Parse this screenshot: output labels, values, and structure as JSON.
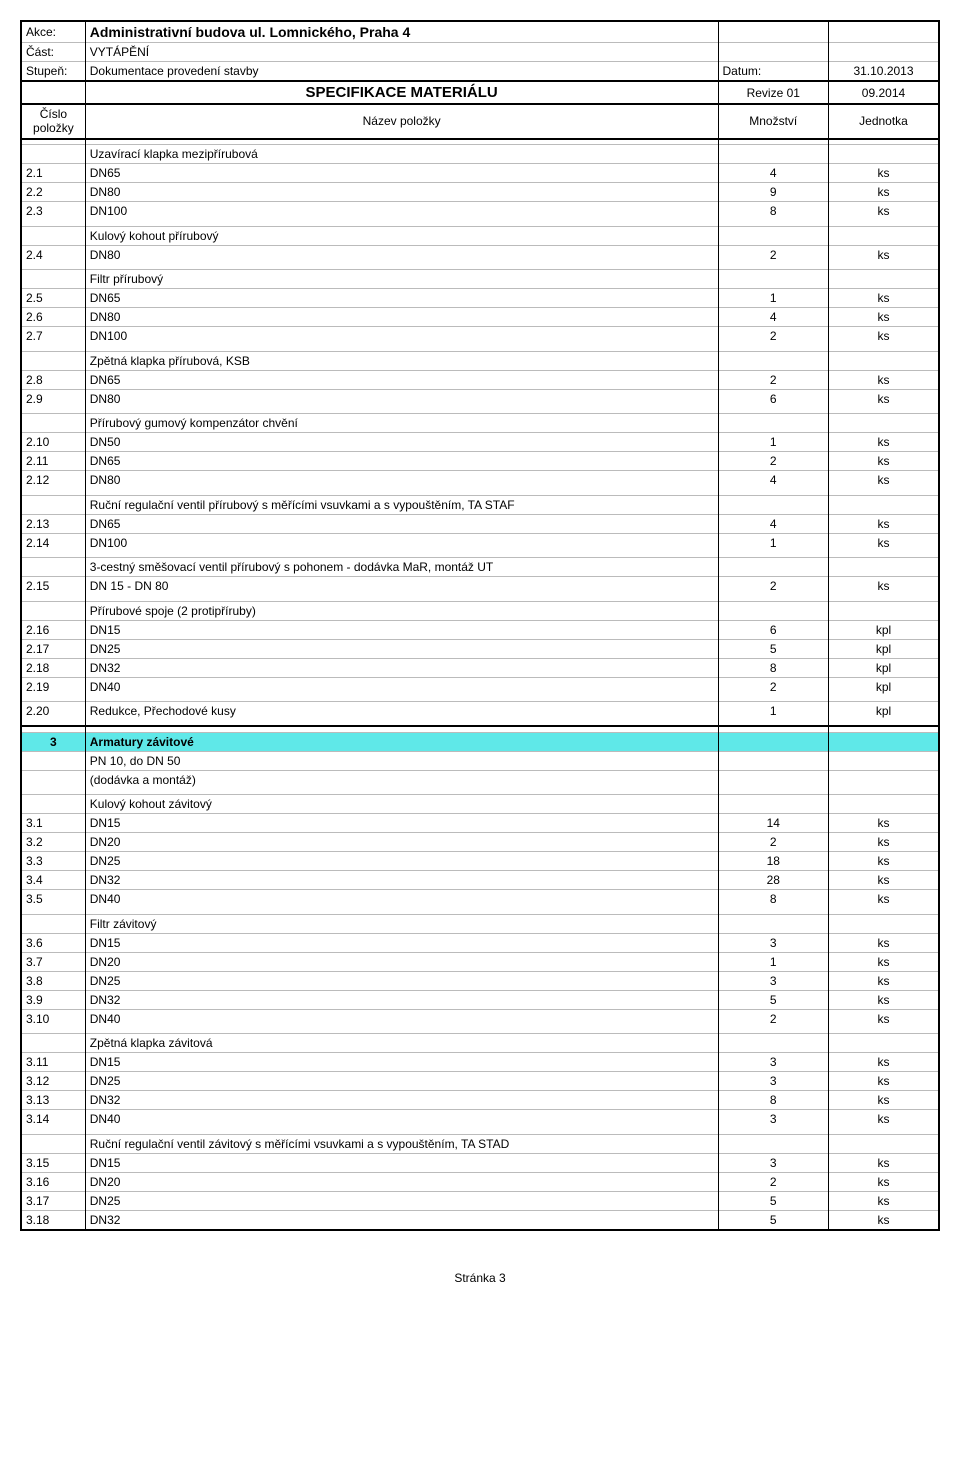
{
  "header": {
    "akce_label": "Akce:",
    "akce_value": "Administrativní budova ul. Lomnického, Praha 4",
    "cast_label": "Část:",
    "cast_value": "VYTÁPĚNÍ",
    "stupen_label": "Stupeň:",
    "stupen_value": "Dokumentace provedení stavby",
    "datum_label": "Datum:",
    "datum_value": "31.10.2013",
    "title": "SPECIFIKACE MATERIÁLU",
    "revize": "Revize 01",
    "revize_date": "09.2014",
    "col_id": "Číslo položky",
    "col_name": "Název položky",
    "col_qty": "Množství",
    "col_unit": "Jednotka"
  },
  "groups": [
    {
      "heading": "Uzavírací klapka mezipřírubová",
      "rows": [
        {
          "id": "2.1",
          "name": "DN65",
          "qty": "4",
          "unit": "ks"
        },
        {
          "id": "2.2",
          "name": "DN80",
          "qty": "9",
          "unit": "ks"
        },
        {
          "id": "2.3",
          "name": "DN100",
          "qty": "8",
          "unit": "ks"
        }
      ]
    },
    {
      "heading": "Kulový kohout přírubový",
      "rows": [
        {
          "id": "2.4",
          "name": "DN80",
          "qty": "2",
          "unit": "ks"
        }
      ]
    },
    {
      "heading": "Filtr přírubový",
      "rows": [
        {
          "id": "2.5",
          "name": "DN65",
          "qty": "1",
          "unit": "ks"
        },
        {
          "id": "2.6",
          "name": "DN80",
          "qty": "4",
          "unit": "ks"
        },
        {
          "id": "2.7",
          "name": "DN100",
          "qty": "2",
          "unit": "ks"
        }
      ]
    },
    {
      "heading": "Zpětná klapka přírubová, KSB",
      "rows": [
        {
          "id": "2.8",
          "name": "DN65",
          "qty": "2",
          "unit": "ks"
        },
        {
          "id": "2.9",
          "name": "DN80",
          "qty": "6",
          "unit": "ks"
        }
      ]
    },
    {
      "heading": "Přírubový gumový kompenzátor chvění",
      "rows": [
        {
          "id": "2.10",
          "name": "DN50",
          "qty": "1",
          "unit": "ks"
        },
        {
          "id": "2.11",
          "name": "DN65",
          "qty": "2",
          "unit": "ks"
        },
        {
          "id": "2.12",
          "name": "DN80",
          "qty": "4",
          "unit": "ks"
        }
      ]
    },
    {
      "heading": "Ruční regulační ventil přírubový s měřícími vsuvkami a s vypouštěním, TA STAF",
      "rows": [
        {
          "id": "2.13",
          "name": "DN65",
          "qty": "4",
          "unit": "ks"
        },
        {
          "id": "2.14",
          "name": "DN100",
          "qty": "1",
          "unit": "ks"
        }
      ]
    },
    {
      "heading": "3-cestný směšovací ventil přírubový s pohonem - dodávka MaR, montáž UT",
      "rows": [
        {
          "id": "2.15",
          "name": "DN 15 - DN 80",
          "qty": "2",
          "unit": "ks"
        }
      ]
    },
    {
      "heading": "Přírubové spoje (2 protipříruby)",
      "rows": [
        {
          "id": "2.16",
          "name": "DN15",
          "qty": "6",
          "unit": "kpl"
        },
        {
          "id": "2.17",
          "name": "DN25",
          "qty": "5",
          "unit": "kpl"
        },
        {
          "id": "2.18",
          "name": "DN32",
          "qty": "8",
          "unit": "kpl"
        },
        {
          "id": "2.19",
          "name": "DN40",
          "qty": "2",
          "unit": "kpl"
        }
      ]
    },
    {
      "heading": "",
      "rows": [
        {
          "id": "2.20",
          "name": "Redukce, Přechodové kusy",
          "qty": "1",
          "unit": "kpl"
        }
      ]
    }
  ],
  "section3": {
    "id": "3",
    "title": "Armatury závitové",
    "sub1": "PN 10, do DN 50",
    "sub2": "(dodávka a montáž)"
  },
  "groups2": [
    {
      "heading": "Kulový kohout závitový",
      "rows": [
        {
          "id": "3.1",
          "name": "DN15",
          "qty": "14",
          "unit": "ks"
        },
        {
          "id": "3.2",
          "name": "DN20",
          "qty": "2",
          "unit": "ks"
        },
        {
          "id": "3.3",
          "name": "DN25",
          "qty": "18",
          "unit": "ks"
        },
        {
          "id": "3.4",
          "name": "DN32",
          "qty": "28",
          "unit": "ks"
        },
        {
          "id": "3.5",
          "name": "DN40",
          "qty": "8",
          "unit": "ks"
        }
      ]
    },
    {
      "heading": "Filtr závitový",
      "rows": [
        {
          "id": "3.6",
          "name": "DN15",
          "qty": "3",
          "unit": "ks"
        },
        {
          "id": "3.7",
          "name": "DN20",
          "qty": "1",
          "unit": "ks"
        },
        {
          "id": "3.8",
          "name": "DN25",
          "qty": "3",
          "unit": "ks"
        },
        {
          "id": "3.9",
          "name": "DN32",
          "qty": "5",
          "unit": "ks"
        },
        {
          "id": "3.10",
          "name": "DN40",
          "qty": "2",
          "unit": "ks"
        }
      ]
    },
    {
      "heading": "Zpětná klapka závitová",
      "rows": [
        {
          "id": "3.11",
          "name": "DN15",
          "qty": "3",
          "unit": "ks"
        },
        {
          "id": "3.12",
          "name": "DN25",
          "qty": "3",
          "unit": "ks"
        },
        {
          "id": "3.13",
          "name": "DN32",
          "qty": "8",
          "unit": "ks"
        },
        {
          "id": "3.14",
          "name": "DN40",
          "qty": "3",
          "unit": "ks"
        }
      ]
    },
    {
      "heading": "Ruční regulační ventil závitový s měřícími vsuvkami a s vypouštěním, TA STAD",
      "rows": [
        {
          "id": "3.15",
          "name": "DN15",
          "qty": "3",
          "unit": "ks"
        },
        {
          "id": "3.16",
          "name": "DN20",
          "qty": "2",
          "unit": "ks"
        },
        {
          "id": "3.17",
          "name": "DN25",
          "qty": "5",
          "unit": "ks"
        },
        {
          "id": "3.18",
          "name": "DN32",
          "qty": "5",
          "unit": "ks"
        }
      ]
    }
  ],
  "footer": "Stránka 3"
}
